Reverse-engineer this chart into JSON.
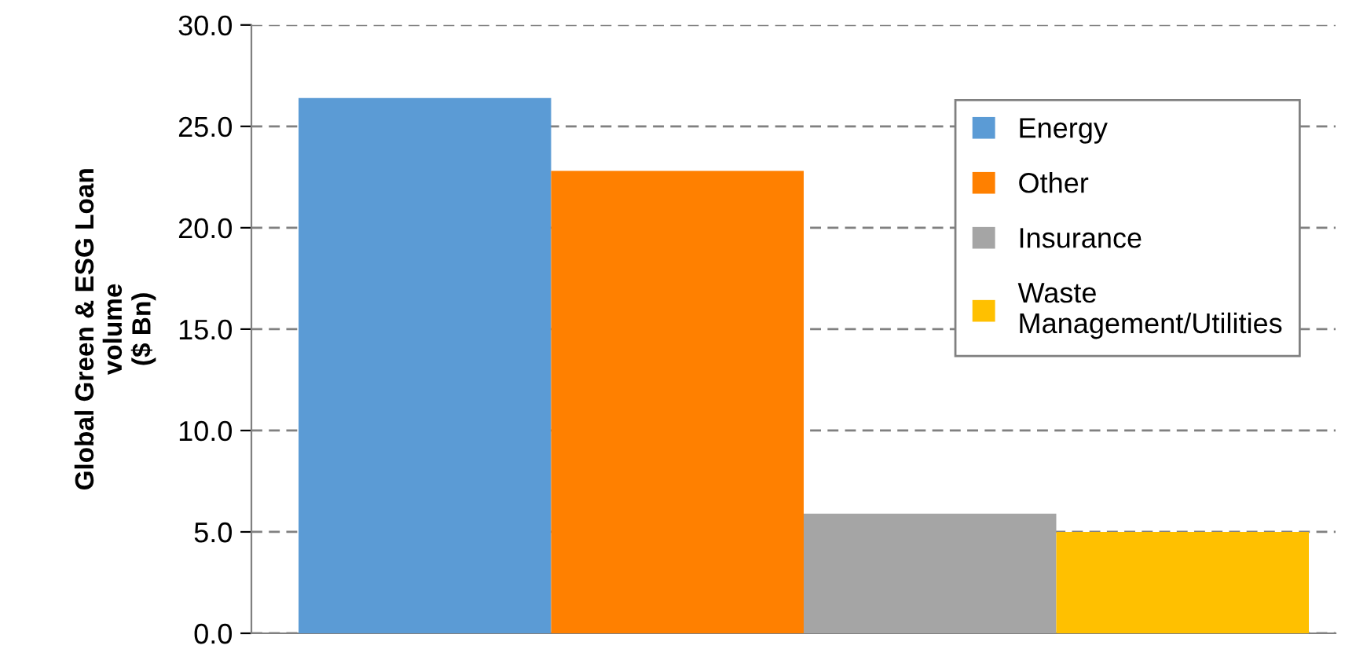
{
  "chart_data": {
    "type": "bar",
    "categories": [
      null
    ],
    "ylabel": "Global Green & ESG Loan\nvolume\n($ Bn)",
    "series": [
      {
        "name": "Energy",
        "color": "#5b9bd5",
        "values": [
          26.4
        ]
      },
      {
        "name": "Other",
        "color": "#ff8000",
        "values": [
          22.8
        ]
      },
      {
        "name": "Insurance",
        "color": "#a5a5a5",
        "values": [
          5.9
        ]
      },
      {
        "name": "Waste\nManagement/Utilities",
        "color": "#ffc000",
        "values": [
          5.0
        ]
      }
    ],
    "ylim": [
      0,
      30
    ],
    "yticks": [
      {
        "value": 0,
        "label": "0.0"
      },
      {
        "value": 5,
        "label": "5.0"
      },
      {
        "value": 10,
        "label": "10.0"
      },
      {
        "value": 15,
        "label": "15.0"
      },
      {
        "value": 20,
        "label": "20.0"
      },
      {
        "value": 25,
        "label": "25.0"
      },
      {
        "value": 30,
        "label": "30.0"
      }
    ],
    "grid": "y",
    "legend": "top right"
  }
}
